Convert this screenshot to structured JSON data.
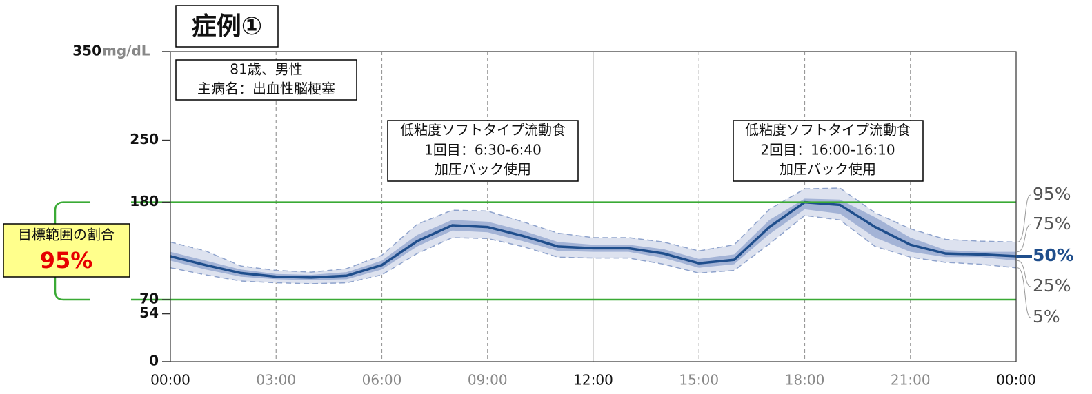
{
  "chart_data": {
    "type": "line",
    "title": "症例①",
    "y_unit": "mg/dL",
    "x": [
      0,
      1,
      2,
      3,
      4,
      5,
      6,
      7,
      8,
      9,
      10,
      11,
      12,
      13,
      14,
      15,
      16,
      17,
      18,
      19,
      20,
      21,
      22,
      23,
      24
    ],
    "xlim": [
      0,
      24
    ],
    "xticks": [
      {
        "value": 0,
        "label": "00:00"
      },
      {
        "value": 3,
        "label": "03:00"
      },
      {
        "value": 6,
        "label": "06:00"
      },
      {
        "value": 9,
        "label": "09:00"
      },
      {
        "value": 12,
        "label": "12:00"
      },
      {
        "value": 15,
        "label": "15:00"
      },
      {
        "value": 18,
        "label": "18:00"
      },
      {
        "value": 21,
        "label": "21:00"
      },
      {
        "value": 24,
        "label": "00:00"
      }
    ],
    "ylim": [
      0,
      350
    ],
    "yticks": [
      0,
      54,
      70,
      180,
      250,
      350
    ],
    "target_range": [
      70,
      180
    ],
    "target_color": "#3aaa35",
    "band_colors": [
      "#dde2ef",
      "#a3b3d6"
    ],
    "series": [
      {
        "name": "95%",
        "color": "#8fa3cc",
        "values": [
          135,
          125,
          108,
          103,
          101,
          105,
          120,
          155,
          171,
          170,
          158,
          145,
          140,
          140,
          135,
          125,
          132,
          172,
          195,
          196,
          168,
          150,
          138,
          136,
          135
        ]
      },
      {
        "name": "75%",
        "color": "#a3b3d6",
        "values": [
          124,
          114,
          104,
          99,
          98,
          101,
          114,
          143,
          160,
          158,
          148,
          135,
          132,
          132,
          127,
          116,
          121,
          160,
          184,
          183,
          163,
          140,
          126,
          124,
          124
        ]
      },
      {
        "name": "50%",
        "color": "#1f4e8c",
        "values": [
          119,
          109,
          100,
          96,
          95,
          97,
          109,
          136,
          154,
          152,
          142,
          130,
          128,
          128,
          122,
          111,
          115,
          152,
          180,
          177,
          152,
          132,
          122,
          121,
          119
        ]
      },
      {
        "name": "25%",
        "color": "#a3b3d6",
        "values": [
          114,
          104,
          96,
          93,
          92,
          93,
          104,
          130,
          148,
          146,
          136,
          125,
          124,
          124,
          117,
          106,
          110,
          144,
          172,
          167,
          140,
          124,
          118,
          118,
          114
        ]
      },
      {
        "name": "5%",
        "color": "#8fa3cc",
        "values": [
          106,
          98,
          91,
          89,
          88,
          89,
          98,
          122,
          140,
          139,
          130,
          118,
          117,
          117,
          110,
          100,
          103,
          133,
          165,
          160,
          130,
          118,
          112,
          110,
          106
        ]
      }
    ],
    "patient_box": [
      "81歳、男性",
      "主病名：出血性脳梗塞"
    ],
    "meal_annotations": [
      [
        "低粘度ソフトタイプ流動食",
        "1回目：6:30-6:40",
        "加圧バック使用"
      ],
      [
        "低粘度ソフトタイプ流動食",
        "2回目：16:00-16:10",
        "加圧バック使用"
      ]
    ],
    "target_label": "目標範囲の割合",
    "time_in_range": 95,
    "time_in_range_label": "95%"
  }
}
